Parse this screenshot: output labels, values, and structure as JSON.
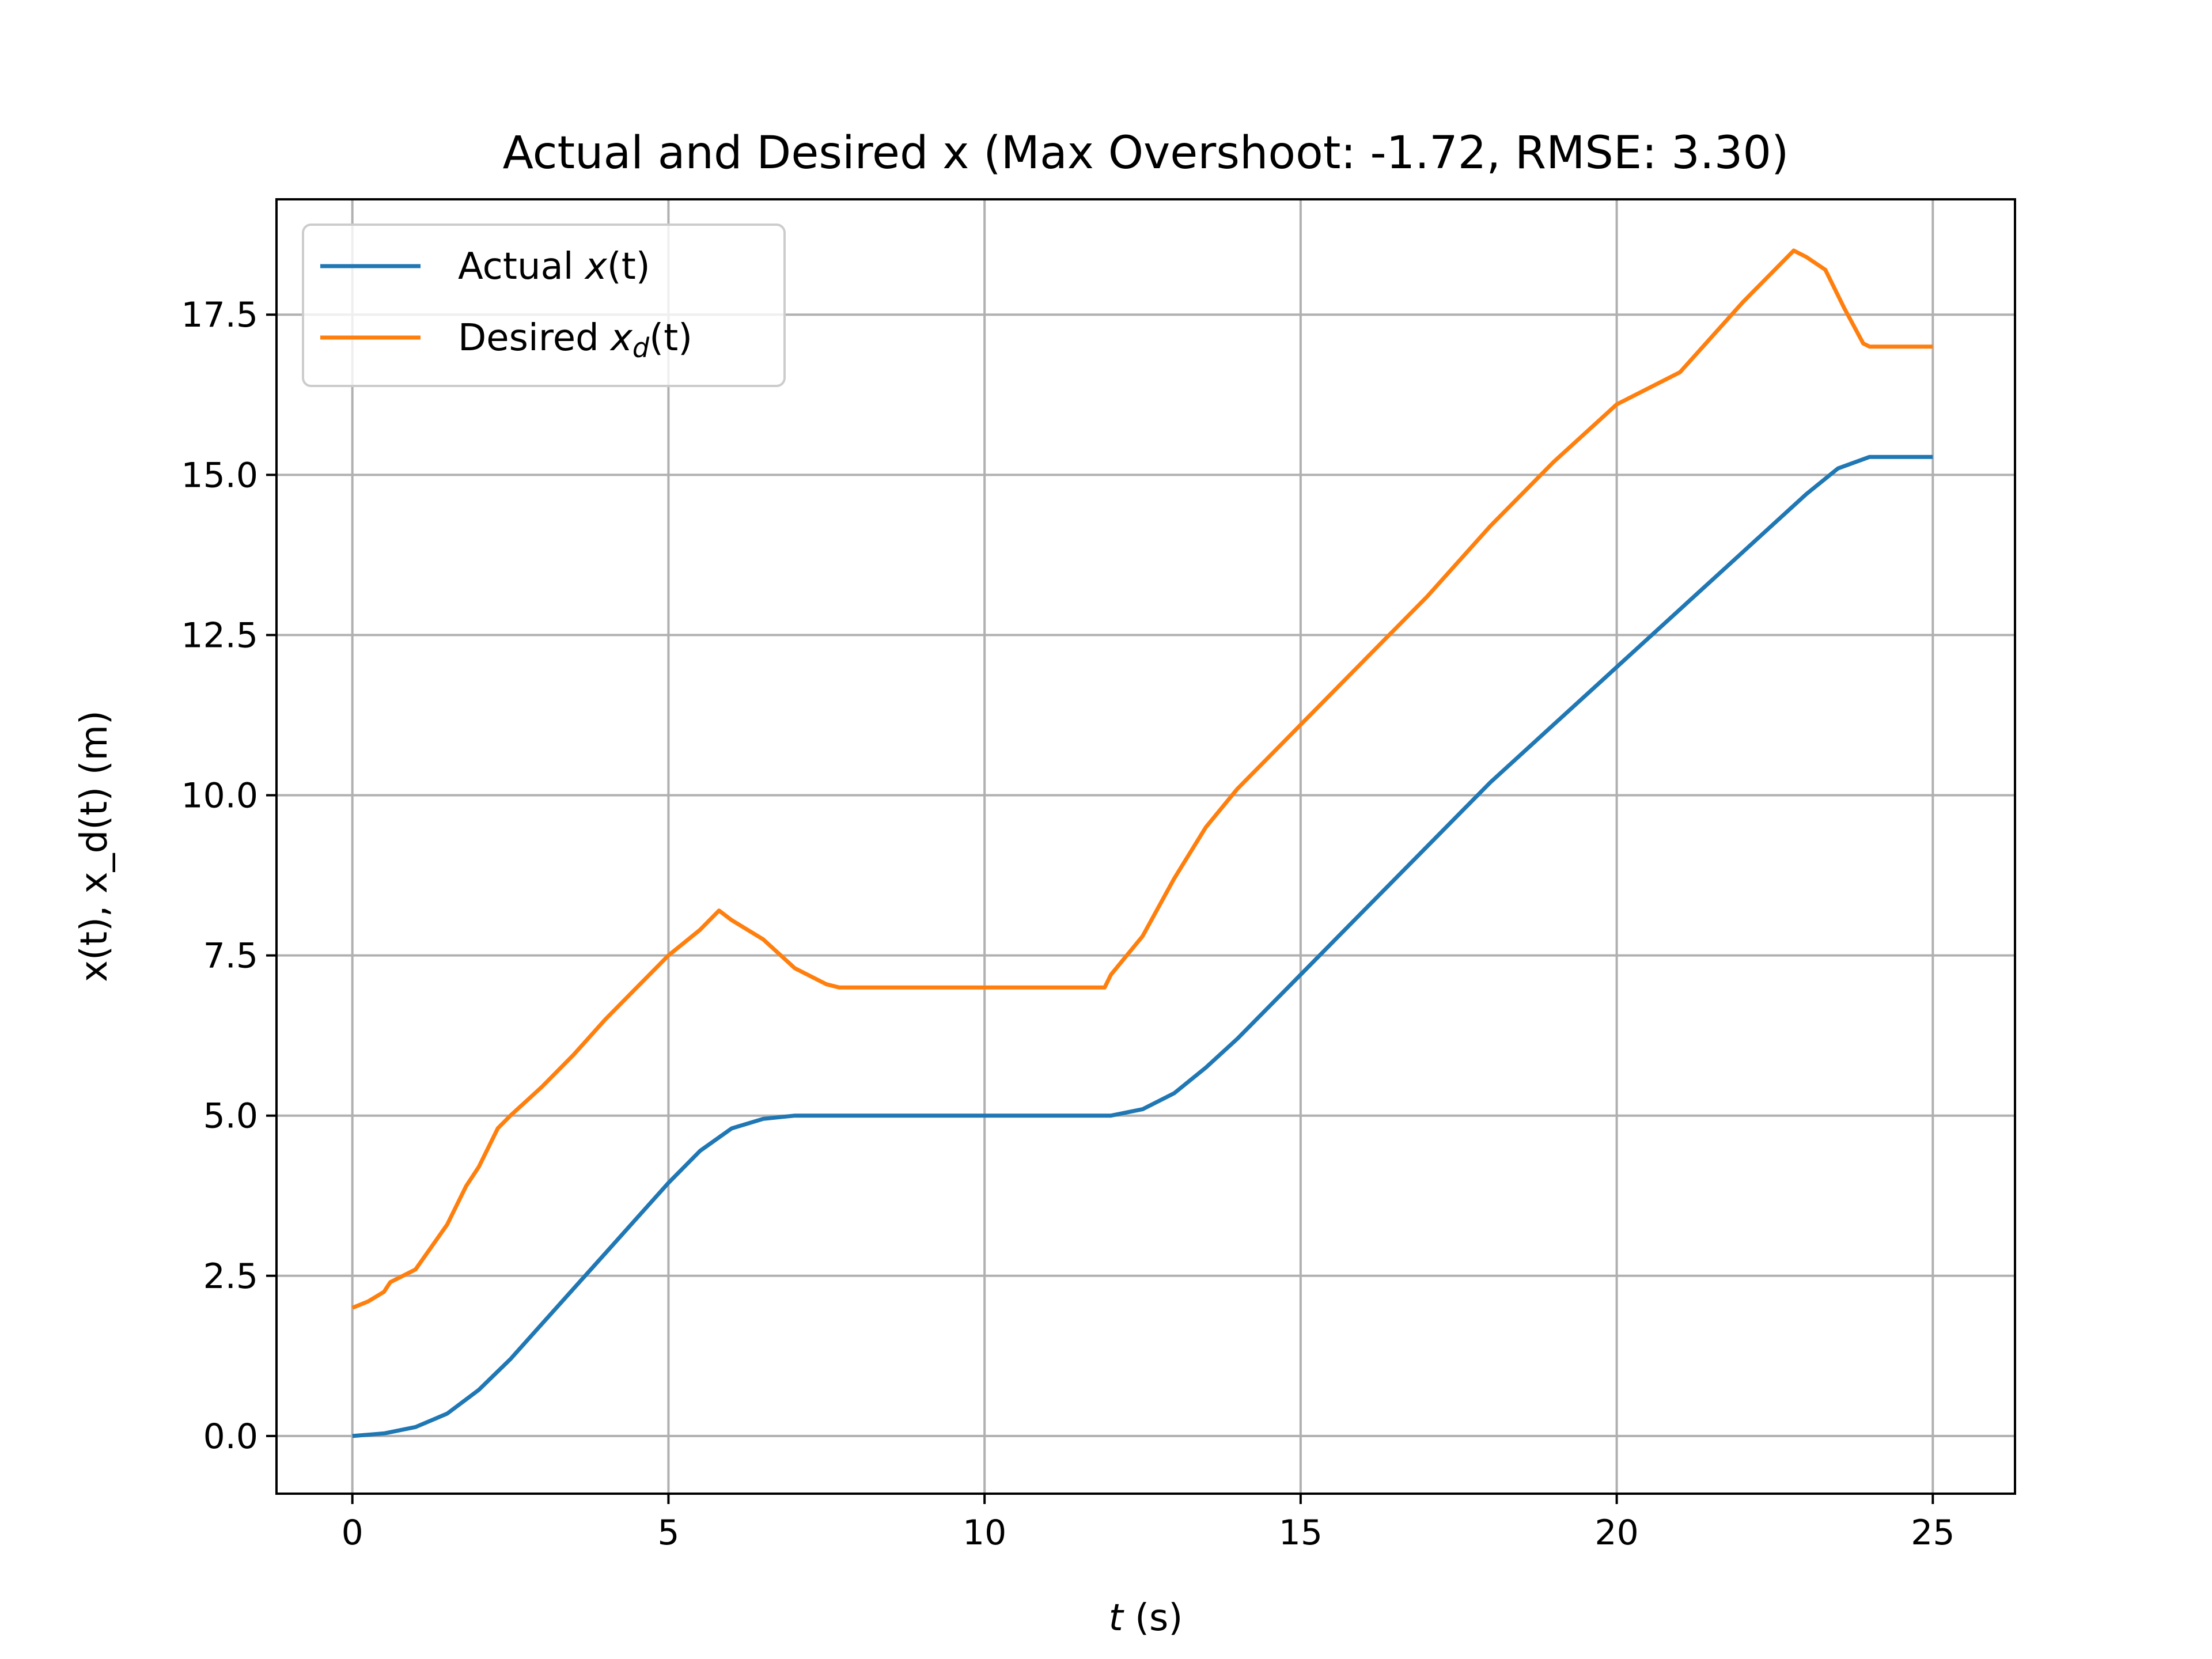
{
  "chart_data": {
    "type": "line",
    "title": "Actual and Desired x (Max Overshoot: -1.72, RMSE: 3.30)",
    "xlabel_var": "t",
    "xlabel_unit": " (s)",
    "ylabel": "x(t), x_d(t) (m)",
    "xlim": [
      -1.2,
      26.3
    ],
    "ylim": [
      -0.9,
      19.3
    ],
    "xticks": [
      0,
      5,
      10,
      15,
      20,
      25
    ],
    "xtick_labels": [
      "0",
      "5",
      "10",
      "15",
      "20",
      "25"
    ],
    "yticks": [
      0.0,
      2.5,
      5.0,
      7.5,
      10.0,
      12.5,
      15.0,
      17.5
    ],
    "ytick_labels": [
      "0.0",
      "2.5",
      "5.0",
      "7.5",
      "10.0",
      "12.5",
      "15.0",
      "17.5"
    ],
    "grid": true,
    "legend_position": "top-left",
    "series": [
      {
        "name": "Actual x(t)",
        "legend_prefix": "Actual ",
        "legend_var": "x",
        "legend_sub": "",
        "legend_suffix": "(t)",
        "color": "#1f77b4",
        "x": [
          0,
          0.5,
          1.0,
          1.5,
          2.0,
          2.5,
          3.0,
          3.5,
          4.0,
          4.5,
          5.0,
          5.5,
          6.0,
          6.5,
          7.0,
          7.5,
          8.0,
          9.0,
          10.0,
          11.0,
          12.0,
          12.5,
          13.0,
          13.5,
          14.0,
          14.5,
          15.0,
          16.0,
          17.0,
          18.0,
          19.0,
          20.0,
          21.0,
          22.0,
          23.0,
          23.5,
          24.0,
          25.0
        ],
        "y": [
          0.0,
          0.04,
          0.14,
          0.35,
          0.72,
          1.2,
          1.75,
          2.3,
          2.85,
          3.4,
          3.95,
          4.45,
          4.8,
          4.95,
          5.0,
          5.0,
          5.0,
          5.0,
          5.0,
          5.0,
          5.0,
          5.1,
          5.35,
          5.75,
          6.2,
          6.7,
          7.2,
          8.2,
          9.2,
          10.2,
          11.1,
          12.0,
          12.9,
          13.8,
          14.7,
          15.1,
          15.28,
          15.28
        ]
      },
      {
        "name": "Desired x_d(t)",
        "legend_prefix": "Desired ",
        "legend_var": "x",
        "legend_sub": "d",
        "legend_suffix": "(t)",
        "color": "#ff7f0e",
        "x": [
          0,
          0.25,
          0.5,
          0.6,
          1.0,
          1.5,
          1.8,
          2.0,
          2.3,
          2.5,
          3.0,
          3.5,
          4.0,
          4.5,
          5.0,
          5.5,
          5.8,
          6.0,
          6.5,
          7.0,
          7.5,
          7.7,
          8.0,
          9.0,
          10.0,
          11.0,
          11.9,
          12.0,
          12.5,
          13.0,
          13.5,
          14.0,
          14.5,
          15.0,
          16.0,
          17.0,
          18.0,
          19.0,
          20.0,
          21.0,
          22.0,
          22.8,
          23.0,
          23.3,
          23.6,
          23.9,
          24.0,
          25.0
        ],
        "y": [
          2.0,
          2.1,
          2.25,
          2.4,
          2.6,
          3.3,
          3.9,
          4.2,
          4.8,
          5.0,
          5.45,
          5.95,
          6.5,
          7.0,
          7.5,
          7.9,
          8.2,
          8.05,
          7.75,
          7.3,
          7.05,
          7.0,
          7.0,
          7.0,
          7.0,
          7.0,
          7.0,
          7.2,
          7.8,
          8.7,
          9.5,
          10.1,
          10.6,
          11.1,
          12.1,
          13.1,
          14.2,
          15.2,
          16.1,
          16.6,
          17.7,
          18.5,
          18.4,
          18.2,
          17.6,
          17.05,
          17.0,
          17.0
        ]
      }
    ]
  }
}
